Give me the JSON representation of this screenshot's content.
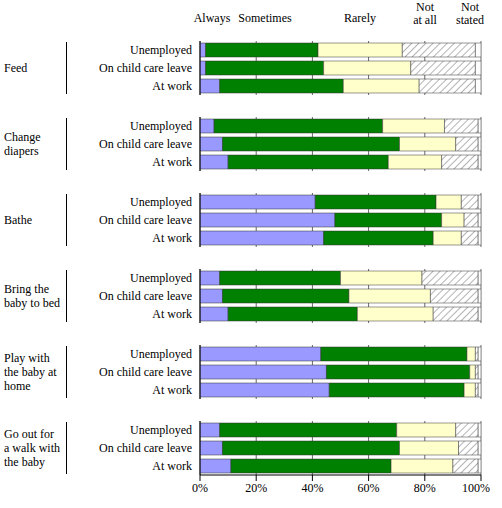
{
  "chart_data": {
    "type": "bar",
    "orientation": "horizontal",
    "stacked": true,
    "grid": true,
    "legend": "top",
    "tick_labels": true,
    "xlim": [
      0,
      100
    ],
    "xticks": [
      {
        "value": 0,
        "label": "0%"
      },
      {
        "value": 20,
        "label": "20%"
      },
      {
        "value": 40,
        "label": "40%"
      },
      {
        "value": 60,
        "label": "60%"
      },
      {
        "value": 80,
        "label": "80%"
      },
      {
        "value": 100,
        "label": "100%"
      }
    ],
    "groups": [
      {
        "name": "Feed",
        "categories": [
          "Unemployed",
          "On child care leave",
          "At work"
        ]
      },
      {
        "name": "Change diapers",
        "categories": [
          "Unemployed",
          "On child care leave",
          "At work"
        ]
      },
      {
        "name": "Bathe",
        "categories": [
          "Unemployed",
          "On child care leave",
          "At work"
        ]
      },
      {
        "name": "Bring the baby to bed",
        "categories": [
          "Unemployed",
          "On child care leave",
          "At work"
        ]
      },
      {
        "name": "Play with the baby at home",
        "categories": [
          "Unemployed",
          "On child care leave",
          "At work"
        ]
      },
      {
        "name": "Go out for a walk with the baby",
        "categories": [
          "Unemployed",
          "On child care leave",
          "At work"
        ]
      }
    ],
    "series": [
      {
        "name": "Always",
        "color": "#9999ff",
        "values": [
          2,
          2,
          7,
          5,
          8,
          10,
          41,
          48,
          44,
          7,
          8,
          10,
          43,
          45,
          46,
          7,
          8,
          11
        ]
      },
      {
        "name": "Sometimes",
        "color": "#008000",
        "values": [
          40,
          42,
          44,
          60,
          63,
          57,
          43,
          38,
          39,
          43,
          45,
          46,
          52,
          51,
          48,
          63,
          63,
          57
        ]
      },
      {
        "name": "Rarely",
        "color": "#ffffcc",
        "values": [
          30,
          31,
          27,
          22,
          20,
          19,
          9,
          8,
          10,
          29,
          29,
          27,
          3,
          2,
          4,
          21,
          21,
          22
        ]
      },
      {
        "name": "Not at all",
        "color": "#808080",
        "line_style": "hatched",
        "values": [
          26,
          23,
          20,
          12,
          8,
          13,
          6,
          5,
          6,
          20,
          17,
          16,
          1,
          1,
          1,
          8,
          7,
          9
        ]
      },
      {
        "name": "Not stated",
        "color": "#ffffff",
        "values": [
          2,
          2,
          2,
          1,
          1,
          1,
          1,
          1,
          1,
          1,
          1,
          1,
          1,
          1,
          1,
          1,
          1,
          1
        ]
      }
    ]
  }
}
